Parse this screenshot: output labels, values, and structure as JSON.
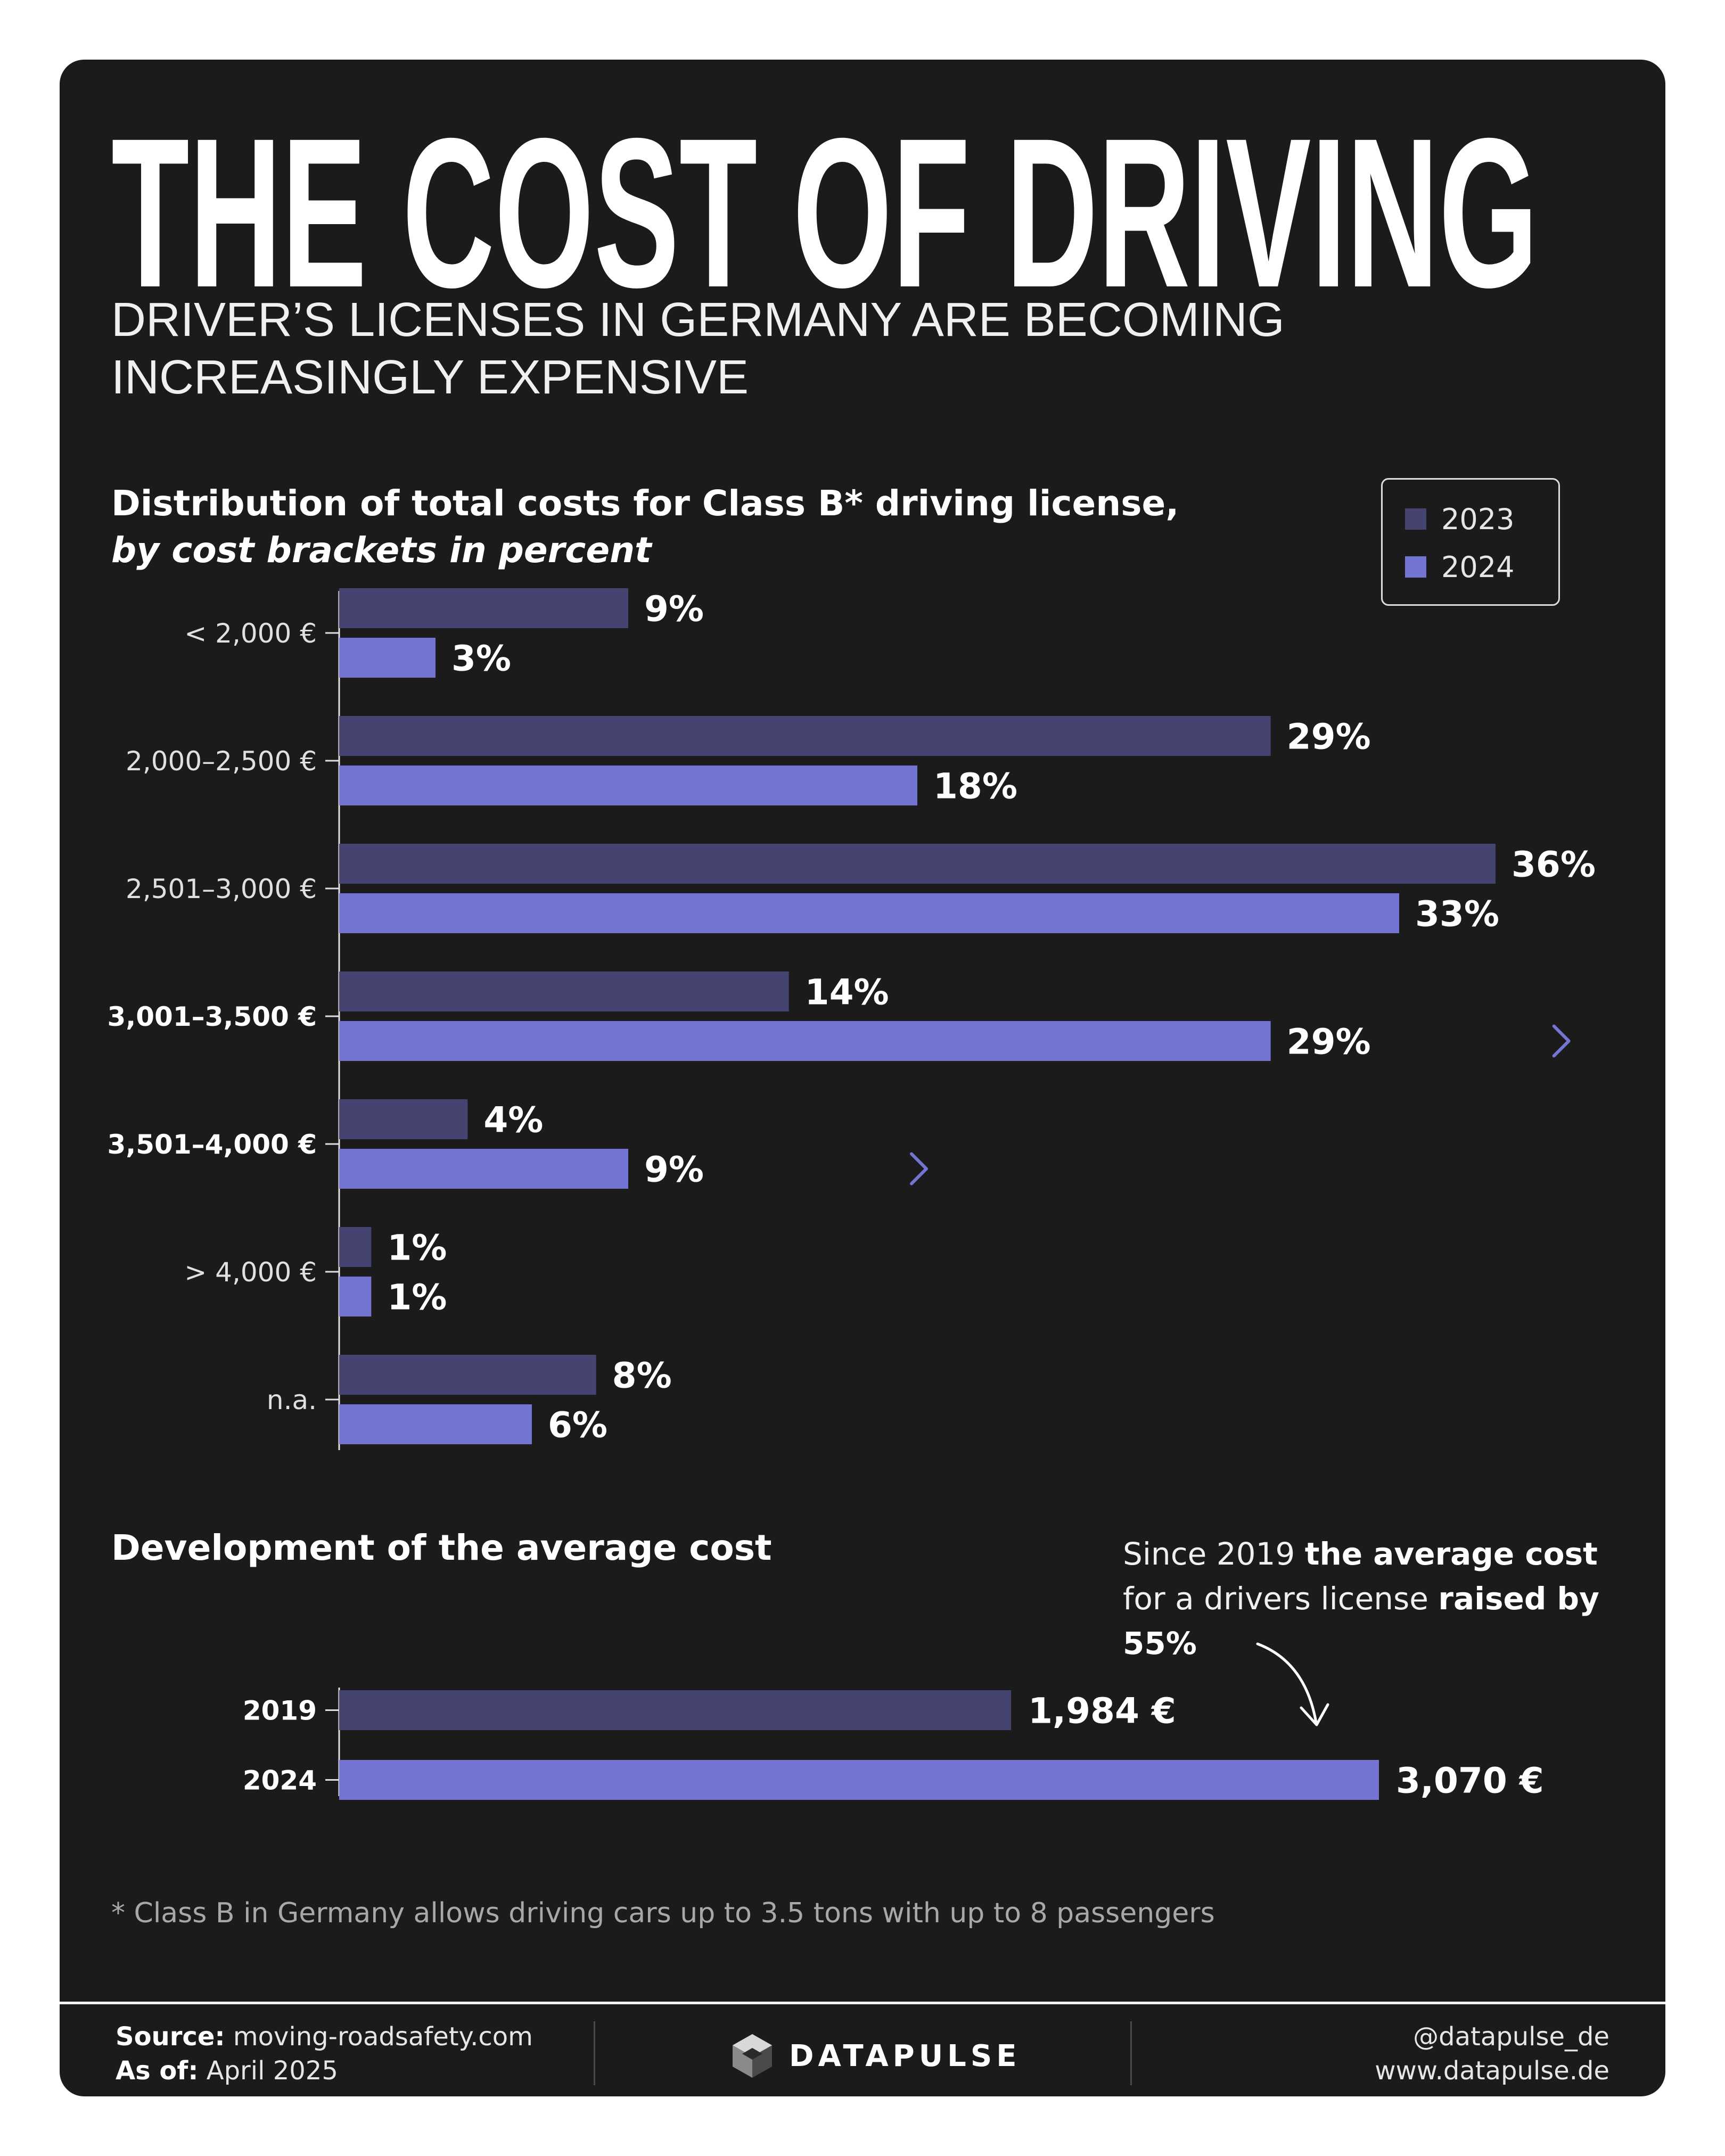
{
  "header": {
    "title": "THE COST OF DRIVING",
    "subtitle": "DRIVER’S LICENSES IN GERMANY ARE BECOMING INCREASINGLY EXPENSIVE"
  },
  "colors": {
    "series_2023": "#45436f",
    "series_2024": "#7474d2",
    "background": "#1b1b1b"
  },
  "chart_data": [
    {
      "type": "bar",
      "orientation": "horizontal",
      "title": "Distribution of total costs for Class B* driving license,",
      "subtitle": "by cost brackets in percent",
      "categories": [
        "< 2,000 €",
        "2,000–2,500 €",
        "2,501–3,000 €",
        "3,001–3,500 €",
        "3,501–4,000 €",
        "> 4,000 €",
        "n.a."
      ],
      "highlighted_categories": [
        "3,001–3,500 €",
        "3,501–4,000 €"
      ],
      "series": [
        {
          "name": "2023",
          "values": [
            9,
            29,
            36,
            14,
            4,
            1,
            8
          ]
        },
        {
          "name": "2024",
          "values": [
            3,
            18,
            33,
            29,
            9,
            1,
            6
          ]
        }
      ],
      "value_labels": {
        "2023": [
          "9%",
          "29%",
          "36%",
          "14%",
          "4%",
          "1%",
          "8%"
        ],
        "2024": [
          "3%",
          "18%",
          "33%",
          "29%",
          "9%",
          "1%",
          "6%"
        ]
      },
      "legend": {
        "placement": "top-right",
        "entries": [
          "2023",
          "2024"
        ]
      },
      "xlim": [
        0,
        36
      ],
      "grid": false
    },
    {
      "type": "bar",
      "orientation": "horizontal",
      "title": "Development of the average cost",
      "categories": [
        "2019",
        "2024"
      ],
      "values": [
        1984,
        3070
      ],
      "value_labels": [
        "1,984 €",
        "3,070 €"
      ],
      "unit": "€",
      "xlim": [
        0,
        3070
      ],
      "grid": false
    }
  ],
  "annotation": {
    "part1": "Since 2019 ",
    "bold1": "the average cost",
    "part2": " for a drivers license ",
    "bold2": "raised by 55%"
  },
  "footnote": "* Class B in Germany allows driving cars up to 3.5 tons with up to 8 passengers",
  "footer": {
    "source_label": "Source:",
    "source_value": "moving-roadsafety.com",
    "asof_label": "As of:",
    "asof_value": "April 2025",
    "brand": "DATAPULSE",
    "handle": "@datapulse_de",
    "website": "www.datapulse.de"
  }
}
